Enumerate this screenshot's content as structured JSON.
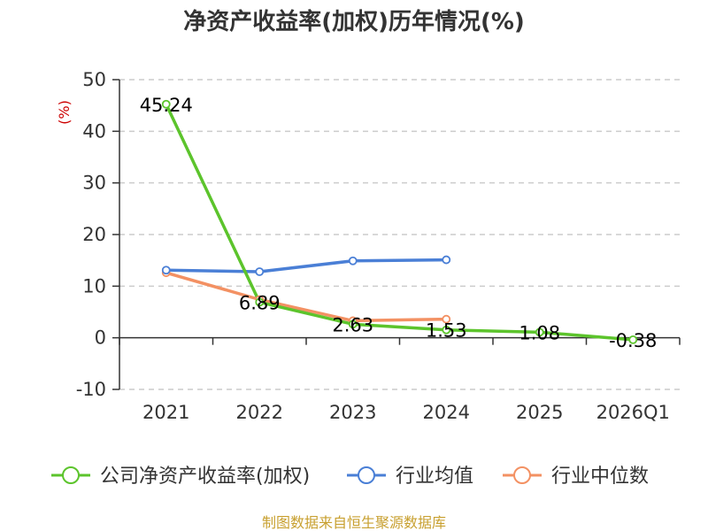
{
  "chart_data": {
    "type": "line",
    "title": "净资产收益率(加权)历年情况(%)",
    "ylabel": "(%)",
    "categories": [
      "2021",
      "2022",
      "2023",
      "2024",
      "2025",
      "2026Q1"
    ],
    "ylim": [
      -10,
      50
    ],
    "yticks": [
      50,
      40,
      30,
      20,
      10,
      0,
      -10
    ],
    "yticks_text": [
      "50",
      "40",
      "30",
      "20",
      "10",
      "0",
      "-10"
    ],
    "grid": true,
    "legend_position": "bottom",
    "series": [
      {
        "name": "公司净资产收益率(加权)",
        "color": "#5cc42c",
        "values": [
          45.24,
          6.89,
          2.63,
          1.53,
          1.08,
          -0.38
        ],
        "labels": [
          "45.24",
          "6.89",
          "2.63",
          "1.53",
          "1.08",
          "-0.38"
        ]
      },
      {
        "name": "行业均值",
        "color": "#4a7fd6",
        "values": [
          13.1,
          12.8,
          14.9,
          15.1,
          null,
          null
        ]
      },
      {
        "name": "行业中位数",
        "color": "#f39163",
        "values": [
          12.6,
          7.4,
          3.3,
          3.6,
          null,
          null
        ]
      }
    ],
    "source": "制图数据来自恒生聚源数据库"
  }
}
